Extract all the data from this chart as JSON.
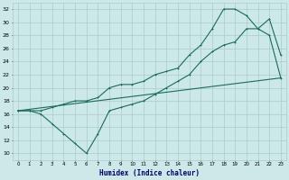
{
  "xlabel": "Humidex (Indice chaleur)",
  "bg_color": "#cce8e8",
  "grid_color": "#aacccc",
  "line_color": "#1a6b5a",
  "xlim": [
    -0.5,
    23.5
  ],
  "ylim": [
    9,
    33
  ],
  "xticks": [
    0,
    1,
    2,
    3,
    4,
    5,
    6,
    7,
    8,
    9,
    10,
    11,
    12,
    13,
    14,
    15,
    16,
    17,
    18,
    19,
    20,
    21,
    22,
    23
  ],
  "yticks": [
    10,
    12,
    14,
    16,
    18,
    20,
    22,
    24,
    26,
    28,
    30,
    32
  ],
  "line1_x": [
    0,
    1,
    2,
    3,
    4,
    5,
    6,
    7,
    8,
    9,
    10,
    11,
    12,
    13,
    14,
    15,
    16,
    17,
    18,
    19,
    20,
    21,
    22,
    23
  ],
  "line1_y": [
    16.5,
    16.5,
    16.0,
    14.5,
    13.0,
    11.5,
    10.0,
    13.0,
    16.5,
    17.0,
    17.5,
    18.0,
    19.0,
    20.0,
    21.0,
    22.0,
    24.0,
    25.5,
    26.5,
    27.0,
    29.0,
    29.0,
    30.5,
    25.0
  ],
  "line2_x": [
    0,
    1,
    2,
    3,
    4,
    5,
    6,
    7,
    8,
    9,
    10,
    11,
    12,
    13,
    14,
    15,
    16,
    17,
    18,
    19,
    20,
    21,
    22,
    23
  ],
  "line2_y": [
    16.5,
    16.5,
    16.5,
    17.0,
    17.5,
    18.0,
    18.0,
    18.5,
    20.0,
    20.5,
    20.5,
    21.0,
    22.0,
    22.5,
    23.0,
    25.0,
    26.5,
    29.0,
    32.0,
    32.0,
    31.0,
    29.0,
    28.0,
    21.5
  ],
  "line3_x": [
    0,
    23
  ],
  "line3_y": [
    16.5,
    21.5
  ]
}
